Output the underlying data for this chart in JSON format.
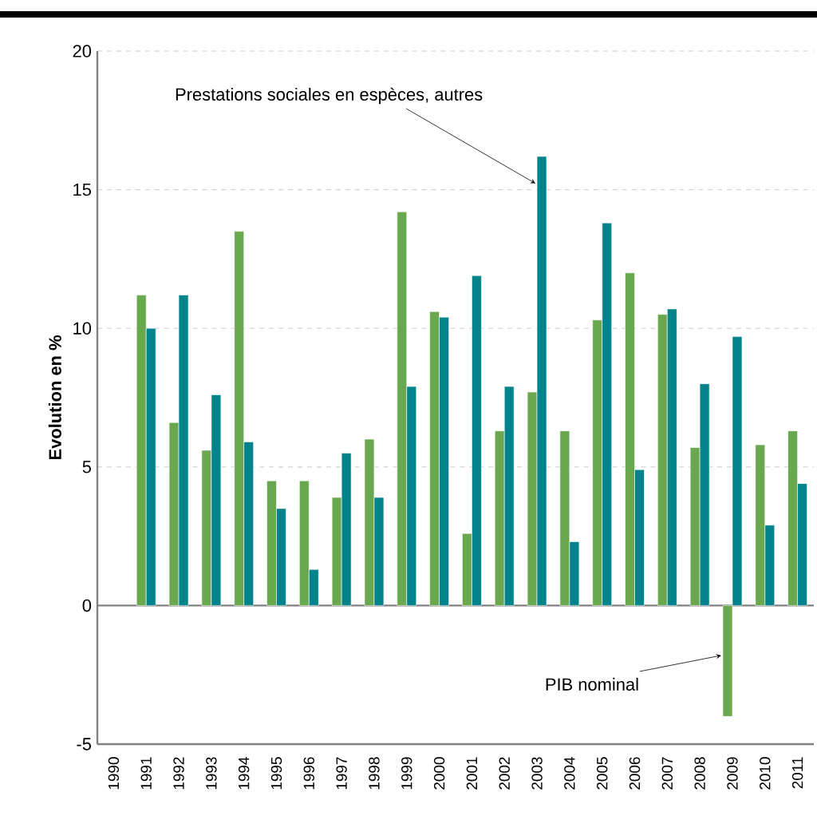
{
  "chart_data": {
    "type": "bar",
    "ylabel": "**Evolution en %**",
    "categories": [
      "1990",
      "1991",
      "1992",
      "1993",
      "1994",
      "1995",
      "1996",
      "1997",
      "1998",
      "1999",
      "2000",
      "2001",
      "2002",
      "2003",
      "2004",
      "2005",
      "2006",
      "2007",
      "2008",
      "2009",
      "2010",
      "2011"
    ],
    "series": [
      {
        "name": "PIB nominal",
        "color": "#6aa84f",
        "values": [
          null,
          11.2,
          6.6,
          5.6,
          13.5,
          4.5,
          4.5,
          3.9,
          6.0,
          14.2,
          10.6,
          2.6,
          6.3,
          7.7,
          6.3,
          10.3,
          12.0,
          10.5,
          5.7,
          -4.0,
          5.8,
          6.3
        ]
      },
      {
        "name": "Prestations sociales en espèces, autres",
        "color": "#00838a",
        "values": [
          null,
          10.0,
          11.2,
          7.6,
          5.9,
          3.5,
          1.3,
          5.5,
          3.9,
          7.9,
          10.4,
          11.9,
          7.9,
          16.2,
          2.3,
          13.8,
          4.9,
          10.7,
          8.0,
          9.7,
          2.9,
          4.4
        ]
      }
    ],
    "ylim": [
      -5,
      20
    ],
    "yticks": [
      -5,
      0,
      5,
      10,
      15,
      20
    ],
    "grid": "y",
    "legend": false
  }
}
